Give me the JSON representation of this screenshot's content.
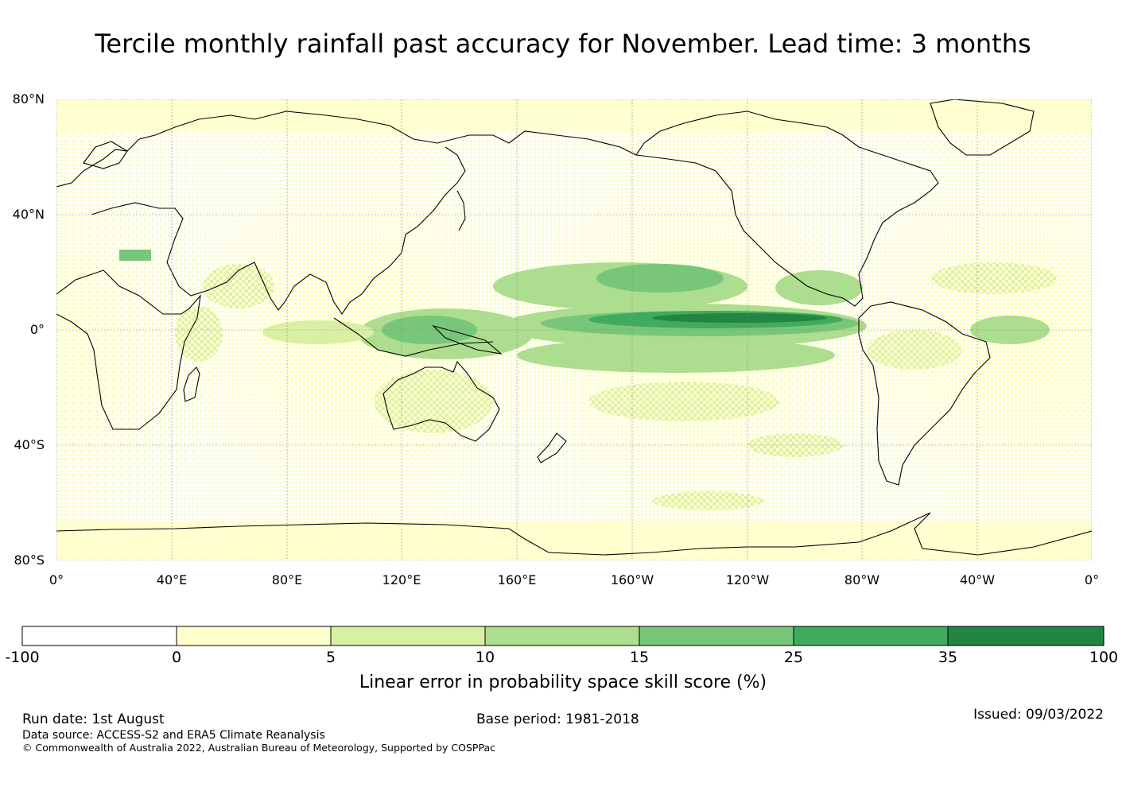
{
  "title": "Tercile monthly rainfall past accuracy for November. Lead time: 3 months",
  "map": {
    "lat_labels": [
      "80°N",
      "40°N",
      "0°",
      "40°S",
      "80°S"
    ],
    "lon_labels": [
      "0°",
      "40°E",
      "80°E",
      "120°E",
      "160°E",
      "160°W",
      "120°W",
      "80°W",
      "40°W",
      "0°"
    ],
    "colors": {
      "land_outline": "#000000",
      "gridline": "#888888",
      "low": "#ffffcc",
      "mid": "#d9f0a3",
      "high": "#addd8e",
      "higher": "#78c679",
      "strong": "#41ab5d",
      "strongest": "#238443"
    }
  },
  "colorbar": {
    "ticks": [
      "-100",
      "0",
      "5",
      "10",
      "15",
      "25",
      "35",
      "100"
    ],
    "colors": [
      "#ffffff",
      "#ffffcc",
      "#d9f0a3",
      "#addd8e",
      "#78c679",
      "#41ab5d",
      "#238443"
    ],
    "label": "Linear error in probability space skill score (%)"
  },
  "footer": {
    "run_date": "Run date: 1st August",
    "base_period": "Base period: 1981-2018",
    "issued": "Issued: 09/03/2022",
    "data_source": "Data source: ACCESS-S2 and ERA5 Climate Reanalysis",
    "copyright": "© Commonwealth of Australia 2022, Australian Bureau of Meteorology, Supported by COSPPac"
  }
}
